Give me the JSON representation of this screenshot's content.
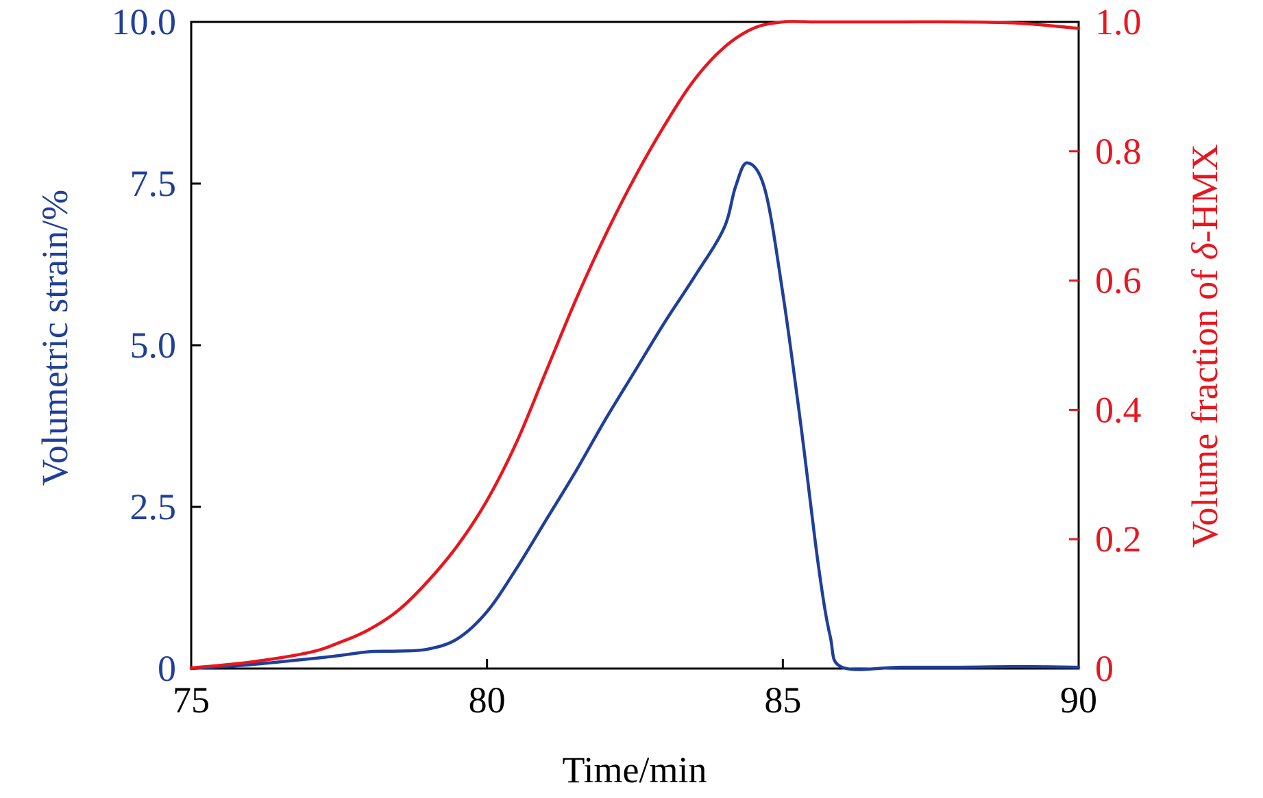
{
  "chart_data": {
    "type": "line",
    "title": "",
    "xlabel": "Time/min",
    "ylabel_left": "Volumetric strain/%",
    "ylabel_right_prefix": "Volume fraction of ",
    "ylabel_right_symbol": "δ",
    "ylabel_right_suffix": "-HMX",
    "xlim": [
      75,
      90
    ],
    "ylim_left": [
      0,
      10
    ],
    "ylim_right": [
      0,
      1
    ],
    "x_ticks": [
      75,
      80,
      85,
      90
    ],
    "x_tick_labels": [
      "75",
      "80",
      "85",
      "90"
    ],
    "y_left_ticks": [
      0,
      2.5,
      5,
      7.5,
      10
    ],
    "y_left_tick_labels": [
      "0",
      "2.5",
      "5.0",
      "7.5",
      "10.0"
    ],
    "y_right_ticks": [
      0,
      0.2,
      0.4,
      0.6,
      0.8,
      1.0
    ],
    "y_right_tick_labels": [
      "0",
      "0.2",
      "0.4",
      "0.6",
      "0.8",
      "1.0"
    ],
    "grid": false,
    "colors": {
      "left_axis": "#1f3f99",
      "right_axis": "#e8161e",
      "frame": "#000000"
    },
    "series": [
      {
        "axis": "left",
        "color": "#1f3f99",
        "x": [
          75,
          76,
          77,
          77.5,
          78,
          78.5,
          79,
          79.5,
          80,
          80.5,
          81,
          81.5,
          82,
          82.5,
          83,
          83.5,
          84,
          84.2,
          84.4,
          84.7,
          85,
          85.3,
          85.6,
          85.8,
          86,
          87,
          88,
          89,
          90
        ],
        "y": [
          0,
          0.06,
          0.15,
          0.2,
          0.26,
          0.27,
          0.3,
          0.46,
          0.88,
          1.55,
          2.3,
          3.05,
          3.85,
          4.6,
          5.35,
          6.05,
          6.8,
          7.45,
          7.82,
          7.4,
          5.8,
          3.8,
          1.6,
          0.5,
          0.02,
          0.02,
          0.02,
          0.03,
          0.02
        ]
      },
      {
        "axis": "right",
        "color": "#e8161e",
        "x": [
          75,
          76,
          77,
          77.5,
          78,
          78.5,
          79,
          79.5,
          80,
          80.5,
          81,
          81.5,
          82,
          82.5,
          83,
          83.5,
          84,
          84.5,
          85,
          85.5,
          86,
          87,
          88,
          89,
          90
        ],
        "y": [
          0.001,
          0.01,
          0.025,
          0.04,
          0.06,
          0.09,
          0.135,
          0.19,
          0.26,
          0.35,
          0.46,
          0.57,
          0.67,
          0.76,
          0.84,
          0.91,
          0.96,
          0.99,
          1.0,
          1.0,
          1.0,
          1.0,
          1.0,
          0.998,
          0.99
        ]
      }
    ]
  }
}
